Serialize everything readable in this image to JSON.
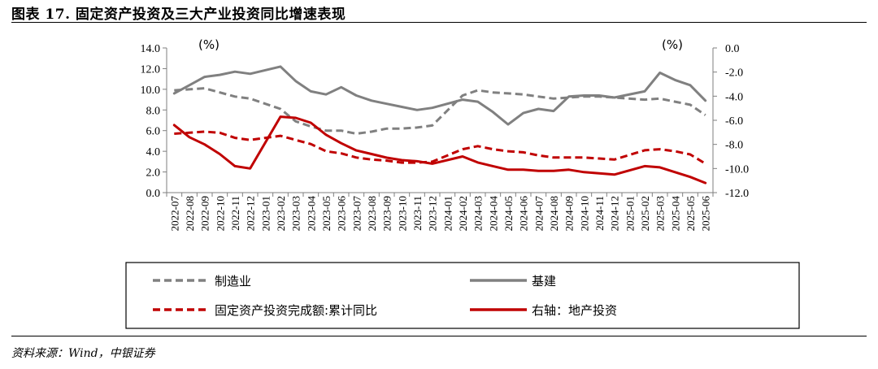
{
  "title": "图表 17. 固定资产投资及三大产业投资同比增速表现",
  "source": "资料来源：Wind，中银证券",
  "colors": {
    "gray": "#808080",
    "red": "#c00000",
    "axis": "#7f7f7f"
  },
  "chart_data": {
    "type": "line",
    "left_unit": "(%)",
    "right_unit": "(%)",
    "left_ylim": [
      0,
      14
    ],
    "left_ticks": [
      "0.0",
      "2.0",
      "4.0",
      "6.0",
      "8.0",
      "10.0",
      "12.0",
      "14.0"
    ],
    "right_ylim": [
      -12,
      0
    ],
    "right_ticks": [
      "-12.0",
      "-10.0",
      "-8.0",
      "-6.0",
      "-4.0",
      "-2.0",
      "0.0"
    ],
    "categories": [
      "2022-07",
      "2022-08",
      "2022-09",
      "2022-10",
      "2022-11",
      "2022-12",
      "2023-01",
      "2023-02",
      "2023-03",
      "2023-04",
      "2023-05",
      "2023-06",
      "2023-07",
      "2023-08",
      "2023-09",
      "2023-10",
      "2023-11",
      "2023-12",
      "2024-01",
      "2024-02",
      "2024-03",
      "2024-04",
      "2024-05",
      "2024-06",
      "2024-07",
      "2024-08",
      "2024-09",
      "2024-10",
      "2024-11",
      "2024-12",
      "2025-01",
      "2025-02",
      "2025-03",
      "2025-04",
      "2025-05",
      "2025-06"
    ],
    "series": [
      {
        "name": "制造业",
        "axis": "left",
        "style": "dashed",
        "color": "#808080",
        "values": [
          9.9,
          10.0,
          10.1,
          9.7,
          9.3,
          9.1,
          null,
          8.1,
          6.9,
          6.4,
          6.0,
          6.0,
          5.7,
          5.9,
          6.2,
          6.2,
          6.3,
          6.5,
          null,
          9.4,
          9.9,
          9.7,
          9.6,
          9.5,
          9.3,
          9.1,
          9.2,
          9.3,
          9.3,
          9.2,
          null,
          9.0,
          9.1,
          8.8,
          8.5,
          7.5
        ]
      },
      {
        "name": "基建",
        "axis": "left",
        "style": "solid",
        "color": "#808080",
        "values": [
          9.6,
          10.4,
          11.2,
          11.4,
          11.7,
          11.5,
          null,
          12.2,
          10.8,
          9.8,
          9.5,
          10.2,
          9.4,
          8.9,
          8.6,
          8.3,
          8.0,
          8.2,
          null,
          9.0,
          8.8,
          7.8,
          6.6,
          7.7,
          8.1,
          7.9,
          9.3,
          9.4,
          9.4,
          9.2,
          null,
          9.8,
          11.6,
          10.9,
          10.4,
          8.9
        ]
      },
      {
        "name": "固定资产投资完成额:累计同比",
        "axis": "left",
        "style": "dashed",
        "color": "#c00000",
        "values": [
          5.7,
          5.8,
          5.9,
          5.8,
          5.3,
          5.1,
          null,
          5.5,
          5.1,
          4.7,
          4.0,
          3.8,
          3.4,
          3.2,
          3.1,
          2.9,
          2.9,
          3.0,
          null,
          4.2,
          4.5,
          4.2,
          4.0,
          3.9,
          3.6,
          3.4,
          3.4,
          3.4,
          3.3,
          3.2,
          null,
          4.1,
          4.2,
          4.0,
          3.7,
          2.8
        ]
      },
      {
        "name": "右轴：地产投资",
        "axis": "right",
        "style": "solid",
        "color": "#c00000",
        "values": [
          -6.4,
          -7.4,
          -8.0,
          -8.8,
          -9.8,
          -10.0,
          null,
          -5.7,
          -5.8,
          -6.2,
          -7.2,
          -7.9,
          -8.5,
          -8.8,
          -9.1,
          -9.3,
          -9.4,
          -9.6,
          null,
          -9.0,
          -9.5,
          -9.8,
          -10.1,
          -10.1,
          -10.2,
          -10.2,
          -10.1,
          -10.3,
          -10.4,
          -10.5,
          null,
          -9.8,
          -9.9,
          -10.3,
          -10.7,
          -11.2
        ]
      }
    ],
    "legend_position": "bottom"
  }
}
